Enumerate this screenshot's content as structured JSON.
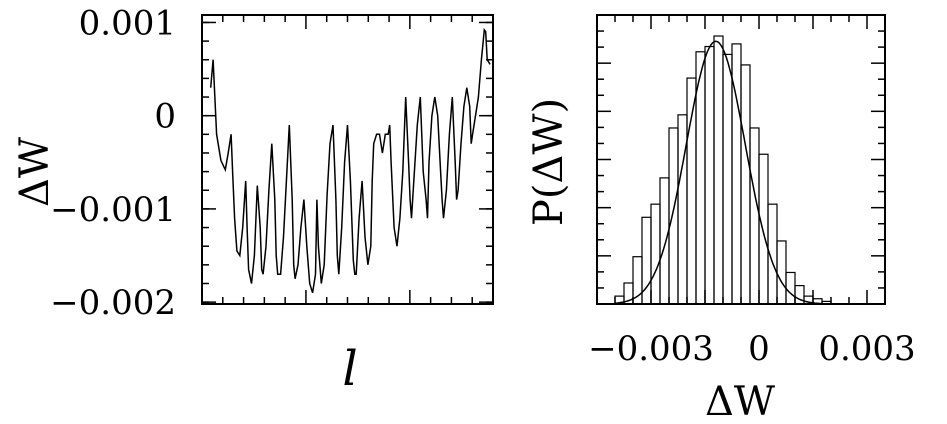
{
  "chart_data": [
    {
      "type": "line",
      "title": "",
      "xlabel": "l",
      "ylabel": "ΔW",
      "ylim": [
        -0.00202,
        0.00108
      ],
      "y_tick_labels": [
        "0.001",
        "0",
        "−0.001",
        "−0.002"
      ],
      "y_ticks": [
        0.001,
        0,
        -0.001,
        -0.002
      ],
      "grid": false,
      "series": [
        {
          "x": [
            0.03,
            0.038,
            0.05,
            0.065,
            0.08,
            0.09,
            0.1,
            0.105,
            0.112,
            0.12,
            0.13,
            0.14,
            0.15,
            0.155,
            0.16,
            0.17,
            0.18,
            0.19,
            0.2,
            0.205,
            0.21,
            0.22,
            0.23,
            0.24,
            0.25,
            0.255,
            0.26,
            0.27,
            0.28,
            0.29,
            0.3,
            0.31,
            0.315,
            0.32,
            0.33,
            0.34,
            0.35,
            0.36,
            0.37,
            0.38,
            0.39,
            0.395,
            0.4,
            0.41,
            0.42,
            0.43,
            0.44,
            0.45,
            0.46,
            0.465,
            0.47,
            0.48,
            0.49,
            0.5,
            0.51,
            0.52,
            0.525,
            0.53,
            0.54,
            0.55,
            0.56,
            0.57,
            0.58,
            0.585,
            0.59,
            0.6,
            0.61,
            0.62,
            0.63,
            0.64,
            0.645,
            0.65,
            0.66,
            0.67,
            0.68,
            0.69,
            0.7,
            0.71,
            0.715,
            0.72,
            0.73,
            0.74,
            0.75,
            0.76,
            0.77,
            0.775,
            0.78,
            0.79,
            0.8,
            0.81,
            0.82,
            0.825,
            0.83,
            0.84,
            0.85,
            0.86,
            0.87,
            0.875,
            0.88,
            0.89,
            0.9,
            0.91,
            0.92,
            0.925,
            0.93,
            0.94,
            0.95,
            0.96,
            0.97,
            0.975,
            0.98,
            0.99
          ],
          "y": [
            0.0003,
            0.0006,
            -0.0002,
            -0.00048,
            -0.00058,
            -0.0004,
            -0.0002,
            -0.0006,
            -0.0011,
            -0.00145,
            -0.0015,
            -0.0012,
            -0.0007,
            -0.0012,
            -0.00165,
            -0.0018,
            -0.0015,
            -0.00075,
            -0.0012,
            -0.00165,
            -0.0017,
            -0.0014,
            -0.0008,
            -0.0003,
            -0.0009,
            -0.0015,
            -0.0017,
            -0.0017,
            -0.0013,
            -0.0007,
            -0.0001,
            -0.0009,
            -0.0016,
            -0.00175,
            -0.0016,
            -0.0012,
            -0.0009,
            -0.0014,
            -0.0018,
            -0.0019,
            -0.0017,
            -0.0009,
            -0.0014,
            -0.0018,
            -0.0016,
            -0.00085,
            -0.0003,
            -0.0001,
            -0.0009,
            -0.0015,
            -0.0017,
            -0.0012,
            -0.0005,
            -0.0001,
            -0.0007,
            -0.00155,
            -0.0017,
            -0.0017,
            -0.0011,
            -0.0007,
            -0.0013,
            -0.0016,
            -0.0014,
            -0.0007,
            -0.0003,
            -0.0002,
            -0.0002,
            -0.0004,
            -0.0002,
            -0.0002,
            -0.0001,
            -0.0005,
            -0.0012,
            -0.0014,
            -0.0011,
            -0.0006,
            0.0002,
            -0.0005,
            -0.0009,
            -0.0011,
            -0.0006,
            -0.0001,
            0.0002,
            -0.0006,
            -0.0009,
            -0.0011,
            -0.0005,
            0.0,
            0.0002,
            0.0,
            -0.0006,
            -0.0009,
            -0.0011,
            -0.0008,
            -0.0002,
            0.0002,
            -0.0005,
            -0.0009,
            -0.0008,
            -0.0003,
            0.0001,
            0.0003,
            0.0001,
            -0.0003,
            -0.0002,
            0.0,
            0.0002,
            0.0006,
            0.00092,
            0.0009,
            0.0006,
            0.00055
          ]
        }
      ]
    },
    {
      "type": "bar",
      "title": "",
      "xlabel": "ΔW",
      "ylabel": "P(ΔW)",
      "xlim": [
        -0.0045,
        0.0035
      ],
      "ylim": [
        0,
        1.1
      ],
      "x_tick_labels": [
        "−0.003",
        "0",
        "0.003"
      ],
      "x_ticks": [
        -0.003,
        0,
        0.003
      ],
      "grid": false,
      "bin_width": 0.00025,
      "bins_left": [
        -0.004,
        -0.00375,
        -0.0035,
        -0.00325,
        -0.003,
        -0.00275,
        -0.0025,
        -0.00225,
        -0.002,
        -0.00175,
        -0.0015,
        -0.00125,
        -0.001,
        -0.00075,
        -0.0005,
        -0.00025,
        0.0,
        0.00025,
        0.0005,
        0.00075,
        0.001,
        0.00125,
        0.0015,
        0.00175
      ],
      "values": [
        0.03,
        0.08,
        0.18,
        0.33,
        0.38,
        0.48,
        0.67,
        0.72,
        0.86,
        0.96,
        0.98,
        1.02,
        0.95,
        0.99,
        0.91,
        0.67,
        0.57,
        0.38,
        0.24,
        0.12,
        0.07,
        0.03,
        0.02,
        0.01
      ],
      "fit_curve": {
        "type": "gaussian",
        "mean": -0.0012,
        "sigma": 0.00082,
        "peak": 1.0,
        "x_range": [
          -0.004,
          0.0018
        ]
      }
    }
  ]
}
